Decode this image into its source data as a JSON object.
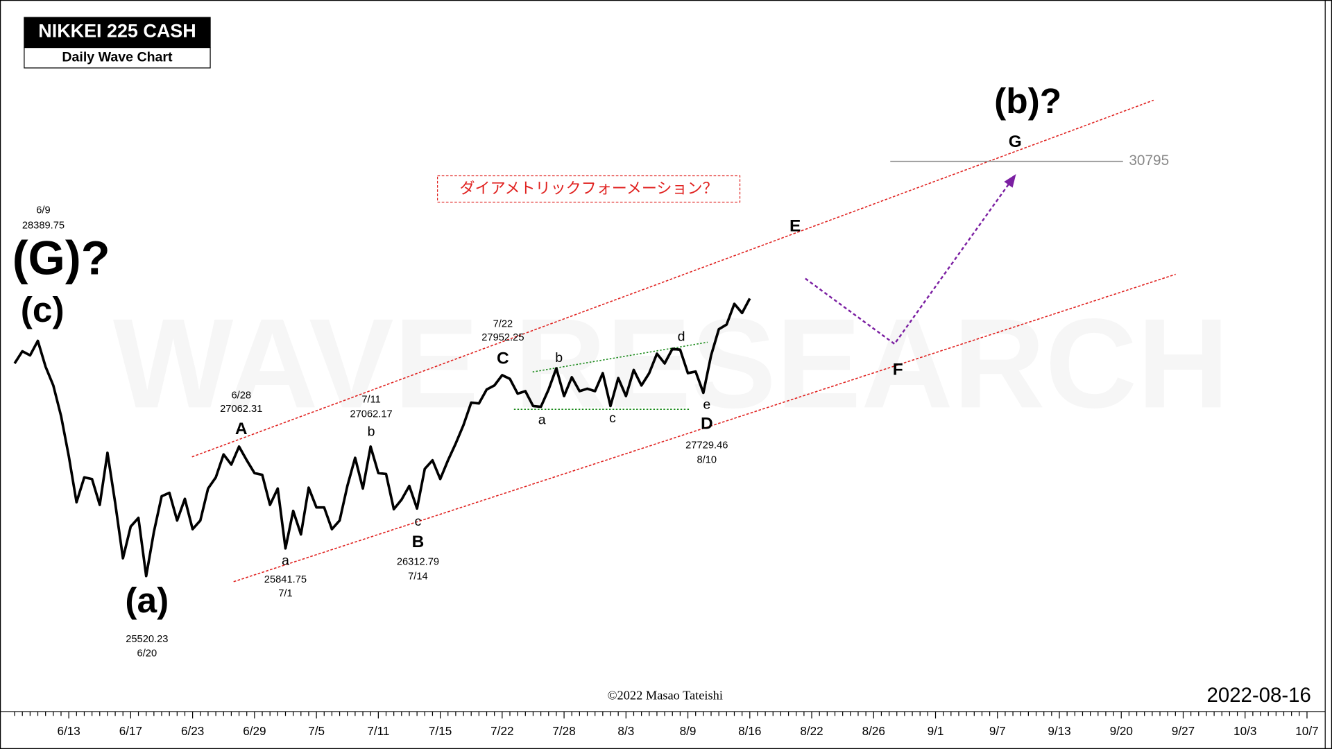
{
  "chart_data": {
    "type": "line",
    "title": "NIKKEI 225 CASH",
    "subtitle": "Daily Wave Chart",
    "watermark": "WAVE RESEARCH",
    "log_scale": true,
    "ylim": [
      24000,
      33130
    ],
    "color": "#000000",
    "target_level": 30795,
    "categories": [
      null,
      null,
      null,
      null,
      null,
      null,
      null,
      "6/13",
      null,
      null,
      null,
      null,
      null,
      null,
      null,
      "6/17",
      null,
      null,
      null,
      null,
      null,
      null,
      null,
      "6/23",
      null,
      null,
      null,
      null,
      null,
      null,
      null,
      "6/29",
      null,
      null,
      null,
      null,
      null,
      null,
      null,
      "7/5",
      null,
      null,
      null,
      null,
      null,
      null,
      null,
      "7/11",
      null,
      null,
      null,
      null,
      null,
      null,
      null,
      "7/15",
      null,
      null,
      null,
      null,
      null,
      null,
      null,
      "7/22",
      null,
      null,
      null,
      null,
      null,
      null,
      null,
      "7/28",
      null,
      null,
      null,
      null,
      null,
      null,
      null,
      "8/3",
      null,
      null,
      null,
      null,
      null,
      null,
      null,
      "8/9",
      null,
      null,
      null,
      null,
      null,
      null,
      null,
      "8/16",
      null,
      null,
      null,
      null,
      null,
      null,
      null,
      "8/22",
      null,
      null,
      null,
      null,
      null,
      null,
      null,
      "8/26",
      null,
      null,
      null,
      null,
      null,
      null,
      null,
      "9/1",
      null,
      null,
      null,
      null,
      null,
      null,
      null,
      "9/7",
      null,
      null,
      null,
      null,
      null,
      null,
      null,
      "9/13",
      null,
      null,
      null,
      null,
      null,
      null,
      null,
      "9/20",
      null,
      null,
      null,
      null,
      null,
      null,
      null,
      "9/27",
      null,
      null,
      null,
      null,
      null,
      null,
      null,
      "10/3",
      null,
      null,
      null,
      null,
      null,
      null,
      null,
      "10/7"
    ],
    "values": [
      28101,
      28256,
      28204,
      28390,
      28060,
      27822,
      27441,
      26945,
      26388,
      26687,
      26667,
      26357,
      26986,
      26378,
      25727,
      26099,
      26202,
      25520,
      26037,
      26460,
      26501,
      26171,
      26429,
      26068,
      26171,
      26553,
      26687,
      26966,
      26842,
      27062,
      26894,
      26739,
      26718,
      26357,
      26553,
      25842,
      26285,
      26006,
      26563,
      26326,
      26326,
      26068,
      26171,
      26584,
      26925,
      26553,
      27062,
      26739,
      26728,
      26305,
      26419,
      26584,
      26313,
      26790,
      26894,
      26667,
      26894,
      27100,
      27327,
      27606,
      27596,
      27771,
      27822,
      27952,
      27905,
      27719,
      27750,
      27564,
      27554,
      27771,
      28039,
      27688,
      27926,
      27750,
      27781,
      27750,
      27977,
      27564,
      27915,
      27688,
      28018,
      27822,
      27977,
      28225,
      28101,
      28287,
      28276,
      27977,
      27998,
      27729,
      28204,
      28540,
      28600,
      28870,
      28750,
      28940,
      null,
      null,
      null,
      null,
      null,
      null,
      null,
      null,
      null,
      null,
      null,
      null,
      null,
      null,
      null,
      null,
      null,
      null,
      null,
      null,
      null,
      null,
      null,
      null,
      null,
      null,
      null,
      null,
      null,
      null,
      null,
      null,
      null,
      null,
      null,
      null,
      null,
      null,
      null,
      null,
      null,
      null,
      null,
      null,
      null,
      null,
      null,
      null,
      null,
      null,
      null,
      null,
      null,
      null,
      null,
      null,
      null,
      null,
      null,
      null,
      null,
      null,
      null,
      null,
      null,
      null,
      null,
      null,
      null,
      null,
      null,
      null
    ],
    "annotations": [
      "6/9",
      "28389.75",
      "(G)?",
      "(c)",
      "(a)",
      "25520.23",
      "6/20",
      "6/28",
      "27062.31",
      "A",
      "a",
      "25841.75",
      "7/1",
      "7/11",
      "27062.17",
      "b",
      "c",
      "B",
      "26312.79",
      "7/14",
      "7/22",
      "27952.25",
      "C",
      "a",
      "b",
      "c",
      "d",
      "e",
      "D",
      "27729.46",
      "8/10",
      "ダイアメトリックフォーメーション？",
      "E",
      "F",
      "G",
      "(b)?",
      "©2022 Masao Tateishi",
      "2022-08-16"
    ]
  }
}
